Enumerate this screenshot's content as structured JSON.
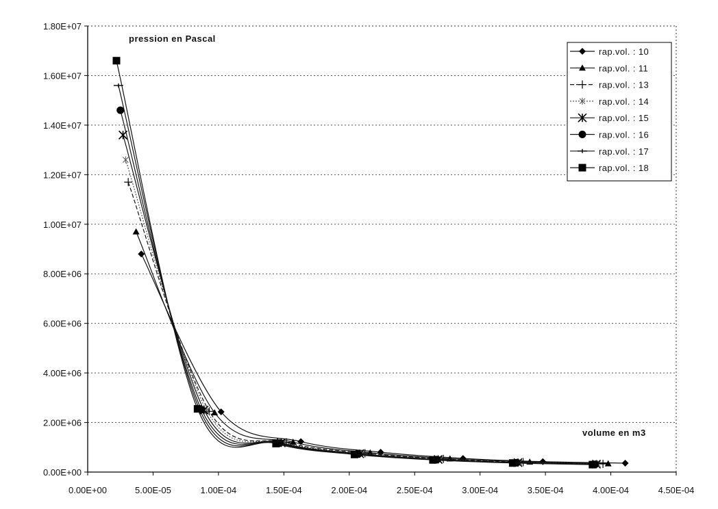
{
  "chart_data": {
    "type": "line",
    "title": "",
    "annotations": {
      "ylabel_note": "pression en Pascal",
      "xlabel_note": "volume en m3"
    },
    "xlim": [
      0,
      0.00045
    ],
    "ylim": [
      0,
      18000000
    ],
    "x_ticks": [
      "0.00E+00",
      "5.00E-05",
      "1.00E-04",
      "1.50E-04",
      "2.00E-04",
      "2.50E-04",
      "3.00E-04",
      "3.50E-04",
      "4.00E-04",
      "4.50E-04"
    ],
    "y_ticks": [
      "0.00E+00",
      "2.00E+06",
      "4.00E+06",
      "6.00E+06",
      "8.00E+06",
      "1.00E+07",
      "1.20E+07",
      "1.40E+07",
      "1.60E+07",
      "1.80E+07"
    ],
    "grid": "horizontal-dotted",
    "legend_position": "top-right",
    "series": [
      {
        "name": "rap.vol. : 10",
        "marker": "diamond",
        "x": [
          4.1e-05,
          0.000102,
          0.000163,
          0.000224,
          0.000287,
          0.000348,
          0.000411
        ],
        "y": [
          8800000,
          2430000,
          1230000,
          800000,
          550000,
          420000,
          360000
        ]
      },
      {
        "name": "rap.vol. : 11",
        "marker": "triangle",
        "x": [
          3.7e-05,
          9.7e-05,
          0.000157,
          0.000216,
          0.000277,
          0.000338,
          0.000398
        ],
        "y": [
          9700000,
          2400000,
          1210000,
          780000,
          540000,
          410000,
          340000
        ]
      },
      {
        "name": "rap.vol. : 13",
        "marker": "plus",
        "x": [
          3.1e-05,
          9.3e-05,
          0.000152,
          0.000212,
          0.000272,
          0.000333,
          0.000394
        ],
        "y": [
          11700000,
          2450000,
          1200000,
          760000,
          530000,
          400000,
          330000
        ]
      },
      {
        "name": "rap.vol. : 14",
        "marker": "star",
        "x": [
          2.9e-05,
          9.1e-05,
          0.00015,
          0.00021,
          0.00027,
          0.00033,
          0.00039
        ],
        "y": [
          12600000,
          2480000,
          1190000,
          750000,
          520000,
          390000,
          330000
        ]
      },
      {
        "name": "rap.vol. : 15",
        "marker": "x",
        "x": [
          2.7e-05,
          8.9e-05,
          0.000148,
          0.000208,
          0.000268,
          0.000329,
          0.000389
        ],
        "y": [
          13600000,
          2500000,
          1180000,
          740000,
          510000,
          380000,
          320000
        ]
      },
      {
        "name": "rap.vol. : 16",
        "marker": "circle",
        "x": [
          2.5e-05,
          8.7e-05,
          0.000147,
          0.000207,
          0.000267,
          0.000328,
          0.000388
        ],
        "y": [
          14600000,
          2520000,
          1170000,
          730000,
          500000,
          380000,
          310000
        ]
      },
      {
        "name": "rap.vol. : 17",
        "marker": "dash",
        "x": [
          2.35e-05,
          8.55e-05,
          0.0001455,
          0.0002055,
          0.0002655,
          0.0003265,
          0.000387
        ],
        "y": [
          15600000,
          2530000,
          1160000,
          720000,
          495000,
          370000,
          305000
        ]
      },
      {
        "name": "rap.vol. : 18",
        "marker": "square",
        "x": [
          2.2e-05,
          8.4e-05,
          0.000144,
          0.000204,
          0.000264,
          0.000325,
          0.000386
        ],
        "y": [
          16600000,
          2550000,
          1150000,
          710000,
          490000,
          365000,
          300000
        ]
      }
    ]
  }
}
